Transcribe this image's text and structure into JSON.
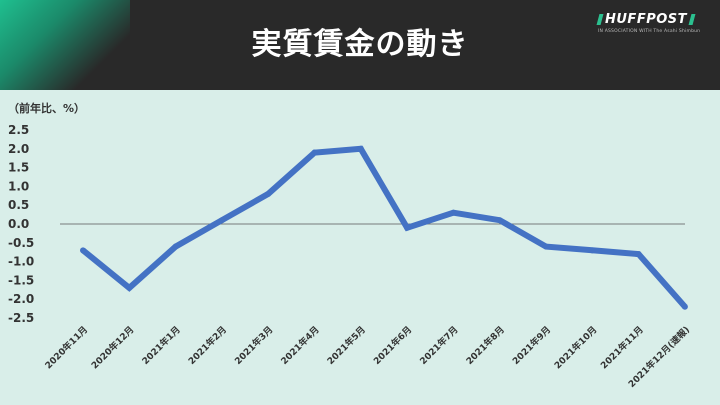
{
  "header": {
    "title": "実質賃金の動き",
    "logo_text": "HUFFPOST",
    "logo_tagline": "IN ASSOCIATION WITH The Asahi Shimbun"
  },
  "colors": {
    "header_bg": "#292929",
    "accent": "#1fbf8f",
    "plot_bg": "#d9eee9",
    "line": "#4472c4"
  },
  "chart_data": {
    "type": "line",
    "ylabel": "（前年比、%）",
    "categories": [
      "2020年11月",
      "2020年12月",
      "2021年1月",
      "2021年2月",
      "2021年3月",
      "2021年4月",
      "2021年5月",
      "2021年6月",
      "2021年7月",
      "2021年8月",
      "2021年9月",
      "2021年10月",
      "2021年11月",
      "2021年12月(速報)"
    ],
    "series": [
      {
        "values": [
          -0.7,
          -1.7,
          -0.6,
          0.1,
          0.8,
          1.9,
          2.0,
          -0.1,
          0.3,
          0.1,
          -0.6,
          -0.7,
          -0.8,
          -2.2
        ]
      }
    ],
    "ylim": [
      -2.5,
      2.5
    ],
    "yticks": [
      "2.5",
      "2.0",
      "1.5",
      "1.0",
      "0.5",
      "0.0",
      "-0.5",
      "-1.0",
      "-1.5",
      "-2.0",
      "-2.5"
    ],
    "grid": false,
    "zero_line": true
  }
}
